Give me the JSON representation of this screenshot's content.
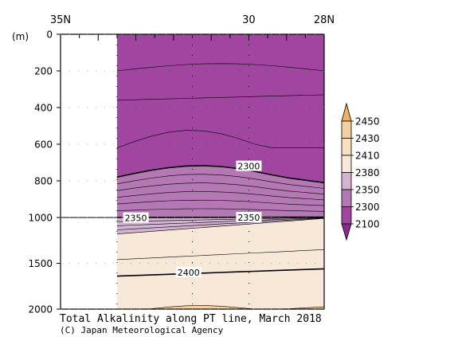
{
  "chart_data": {
    "type": "heatmap",
    "title": "Total Alkalinity along PT line, March 2018",
    "credit": "(C) Japan Meteorological Agency",
    "xlabel": "",
    "ylabel": "(m)",
    "x_ticks": [
      {
        "label": "35N",
        "lat": 35
      },
      {
        "label": "30",
        "lat": 30
      },
      {
        "label": "28N",
        "lat": 28
      }
    ],
    "xlim": [
      35,
      28
    ],
    "ylim": [
      0,
      2000
    ],
    "y_scale": "piecewise linear: 0-1000 m and 1000-2000 m drawn with different scales",
    "y_ticks": [
      0,
      200,
      400,
      600,
      800,
      1000,
      1500,
      2000
    ],
    "data_lat_range": [
      33.5,
      28
    ],
    "station_lats": [
      33.5,
      31.5,
      30
    ],
    "colorbar": {
      "labels": [
        "2100",
        "2300",
        "2350",
        "2380",
        "2410",
        "2430",
        "2450"
      ],
      "colors": [
        "#a046a0",
        "#b478b4",
        "#d2b4d2",
        "#f8e8d8",
        "#f8e0c0",
        "#f4d0a0",
        "#f0b060"
      ],
      "extend": "both"
    },
    "contour_labels": [
      {
        "text": "2300",
        "lat": 30.0,
        "depth": 720
      },
      {
        "text": "2350",
        "lat": 33.0,
        "depth": 1005
      },
      {
        "text": "2350",
        "lat": 30.0,
        "depth": 1000
      },
      {
        "text": "2400",
        "lat": 31.6,
        "depth": 1600
      }
    ]
  }
}
